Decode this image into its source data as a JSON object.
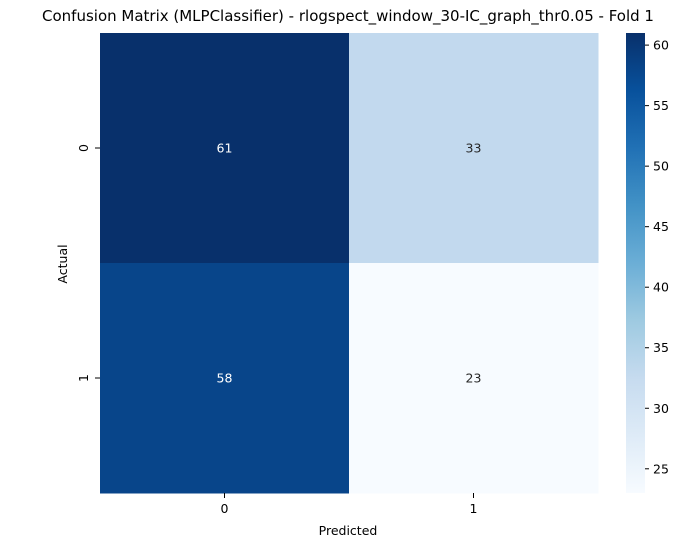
{
  "chart_data": {
    "type": "heatmap",
    "title": "Confusion Matrix (MLPClassifier) - rlogspect_window_30-IC_graph_thr0.05 - Fold 1",
    "xlabel": "Predicted",
    "ylabel": "Actual",
    "x_categories": [
      "0",
      "1"
    ],
    "y_categories": [
      "0",
      "1"
    ],
    "values": [
      [
        61,
        33
      ],
      [
        58,
        23
      ]
    ],
    "colormap": "Blues",
    "colorbar": {
      "min": 23,
      "max": 61,
      "ticks": [
        25,
        30,
        35,
        40,
        45,
        50,
        55,
        60
      ]
    }
  }
}
